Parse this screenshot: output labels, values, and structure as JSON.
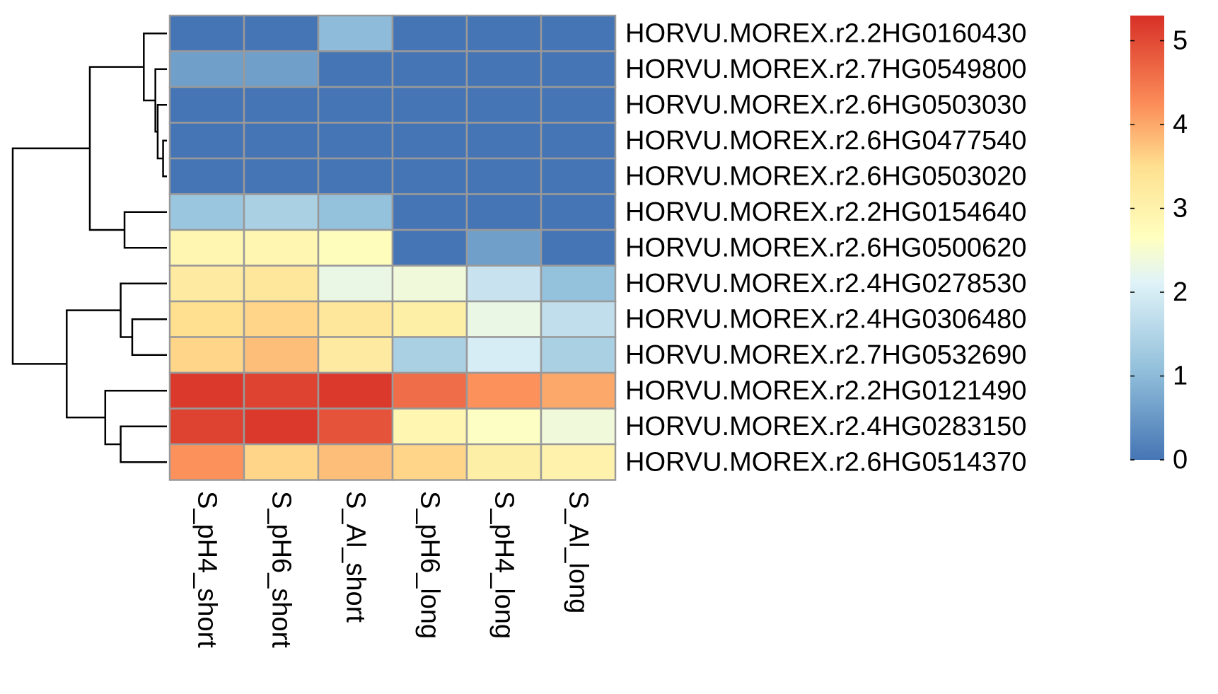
{
  "chart_data": {
    "type": "heatmap",
    "title": "",
    "xlabel": "",
    "ylabel": "",
    "columns": [
      "S_pH4_short",
      "S_pH6_short",
      "S_Al_short",
      "S_pH6_long",
      "S_pH4_long",
      "S_Al_long"
    ],
    "rows": [
      "HORVU.MOREX.r2.2HG0160430",
      "HORVU.MOREX.r2.7HG0549800",
      "HORVU.MOREX.r2.6HG0503030",
      "HORVU.MOREX.r2.6HG0477540",
      "HORVU.MOREX.r2.6HG0503020",
      "HORVU.MOREX.r2.2HG0154640",
      "HORVU.MOREX.r2.6HG0500620",
      "HORVU.MOREX.r2.4HG0278530",
      "HORVU.MOREX.r2.4HG0306480",
      "HORVU.MOREX.r2.7HG0532690",
      "HORVU.MOREX.r2.2HG0121490",
      "HORVU.MOREX.r2.4HG0283150",
      "HORVU.MOREX.r2.6HG0514370"
    ],
    "values": [
      [
        0.0,
        0.0,
        1.0,
        0.0,
        0.0,
        0.0
      ],
      [
        0.6,
        0.6,
        0.0,
        0.0,
        0.0,
        0.0
      ],
      [
        0.0,
        0.0,
        0.0,
        0.0,
        0.0,
        0.0
      ],
      [
        0.0,
        0.0,
        0.0,
        0.0,
        0.0,
        0.0
      ],
      [
        0.0,
        0.0,
        0.0,
        0.0,
        0.0,
        0.0
      ],
      [
        1.2,
        1.4,
        1.1,
        0.0,
        0.0,
        0.0
      ],
      [
        2.9,
        2.9,
        2.7,
        0.0,
        0.6,
        0.0
      ],
      [
        3.2,
        3.3,
        2.3,
        2.4,
        1.8,
        1.1
      ],
      [
        3.5,
        3.6,
        3.3,
        3.1,
        2.3,
        1.7
      ],
      [
        3.6,
        3.8,
        3.2,
        1.4,
        2.0,
        1.4
      ],
      [
        5.2,
        5.1,
        5.2,
        4.6,
        4.2,
        4.0
      ],
      [
        5.1,
        5.2,
        4.9,
        2.9,
        2.6,
        2.4
      ],
      [
        4.2,
        3.6,
        3.8,
        3.6,
        3.1,
        3.0
      ]
    ],
    "color_scale": {
      "min": 0,
      "max": 5.3,
      "stops": [
        {
          "v": 0.0,
          "color": "#4575b4"
        },
        {
          "v": 1.06,
          "color": "#91bfdb"
        },
        {
          "v": 2.12,
          "color": "#e0f3f8"
        },
        {
          "v": 2.65,
          "color": "#ffffbf"
        },
        {
          "v": 3.5,
          "color": "#fee090"
        },
        {
          "v": 4.24,
          "color": "#fc8d59"
        },
        {
          "v": 5.3,
          "color": "#d73027"
        }
      ]
    },
    "legend": {
      "placement": "right",
      "ticks": [
        {
          "value": 0,
          "label": "0"
        },
        {
          "value": 1,
          "label": "1"
        },
        {
          "value": 2,
          "label": "2"
        },
        {
          "value": 3,
          "label": "3"
        },
        {
          "value": 4,
          "label": "4"
        },
        {
          "value": 5,
          "label": "5"
        }
      ]
    },
    "row_dendrogram": {
      "merges": [
        [
          3,
          4,
          0.05
        ],
        [
          2,
          -1,
          0.12
        ],
        [
          1,
          -2,
          0.15
        ],
        [
          0,
          -3,
          0.3
        ],
        [
          5,
          6,
          0.55
        ],
        [
          -4,
          -5,
          1.0
        ],
        [
          8,
          9,
          0.45
        ],
        [
          7,
          -7,
          0.6
        ],
        [
          11,
          12,
          0.6
        ],
        [
          10,
          -9,
          0.8
        ],
        [
          -8,
          -10,
          1.3
        ],
        [
          -6,
          -11,
          2.0
        ]
      ]
    }
  }
}
